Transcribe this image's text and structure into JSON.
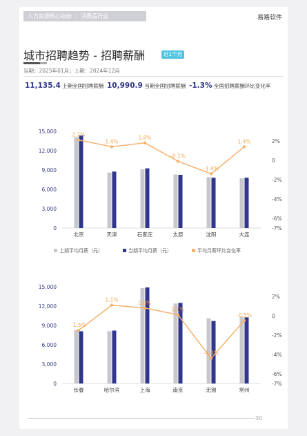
{
  "header": {
    "topbar_text": "人力资源核心指标 ｜ 消费品行业",
    "brand": "易路软件"
  },
  "title": "城市招聘趋势 - 招聘薪酬",
  "badge": "近1个月",
  "period": "当期：2025年01月；上期：2024年12月",
  "kpis": {
    "prev_value": "11,135.4",
    "prev_label": "上期全国招聘薪酬",
    "curr_value": "10,990.9",
    "curr_label": "当期全国招聘薪酬",
    "change_value": "-1.3%",
    "change_label": "全国招聘薪酬环比变化率"
  },
  "page_number": "30",
  "colors": {
    "prev_bar": "#c8c8cc",
    "curr_bar": "#30358d",
    "line": "#f4b26d"
  },
  "chart_data": [
    {
      "type": "bar",
      "categories": [
        "北京",
        "天津",
        "石家庄",
        "太原",
        "沈阳",
        "大连"
      ],
      "series": [
        {
          "name": "上期平均月薪（元）",
          "values": [
            14100,
            8600,
            9100,
            8300,
            7900,
            7700
          ]
        },
        {
          "name": "当期平均月薪（元）",
          "values": [
            14350,
            8750,
            9250,
            8250,
            7800,
            7800
          ]
        },
        {
          "name": "平均月薪环比变化率",
          "type": "line",
          "axis": "right",
          "values": [
            2.1,
            1.4,
            1.8,
            -0.1,
            -1.4,
            1.4
          ],
          "labels": [
            "2.1%",
            "1.4%",
            "1.8%",
            "-0.1%",
            "-1.4%",
            "1.4%"
          ]
        }
      ],
      "ylim": [
        0,
        15000
      ],
      "yticks": [
        "0",
        "3,000",
        "6,000",
        "9,000",
        "12,000",
        "15,000"
      ],
      "y2lim": [
        -7,
        3
      ],
      "y2ticks": [
        "2%",
        "0",
        "-2%",
        "-4%",
        "-6%",
        "-7%"
      ],
      "legend": "bottom"
    },
    {
      "type": "bar",
      "categories": [
        "长春",
        "哈尔滨",
        "上海",
        "南京",
        "无锡",
        "常州"
      ],
      "series": [
        {
          "name": "上期平均月薪（元）",
          "values": [
            8300,
            8100,
            14800,
            12400,
            10100,
            10300
          ]
        },
        {
          "name": "当期平均月薪（元）",
          "values": [
            8100,
            8200,
            14900,
            12500,
            9700,
            10250
          ]
        },
        {
          "name": "平均月薪环比变化率",
          "type": "line",
          "axis": "right",
          "values": [
            -1.5,
            1.1,
            0.8,
            0.1,
            -4.4,
            -0.5
          ],
          "labels": [
            "-1.5%",
            "1.1%",
            "0.8%",
            "0.1%",
            "-4.4%",
            "-0.5%"
          ]
        }
      ],
      "ylim": [
        0,
        15000
      ],
      "yticks": [
        "0",
        "3,000",
        "6,000",
        "9,000",
        "12,000",
        "15,000"
      ],
      "y2lim": [
        -7,
        3
      ],
      "y2ticks": [
        "2%",
        "0",
        "-2%",
        "-4%",
        "-6%",
        "-7%"
      ]
    }
  ]
}
